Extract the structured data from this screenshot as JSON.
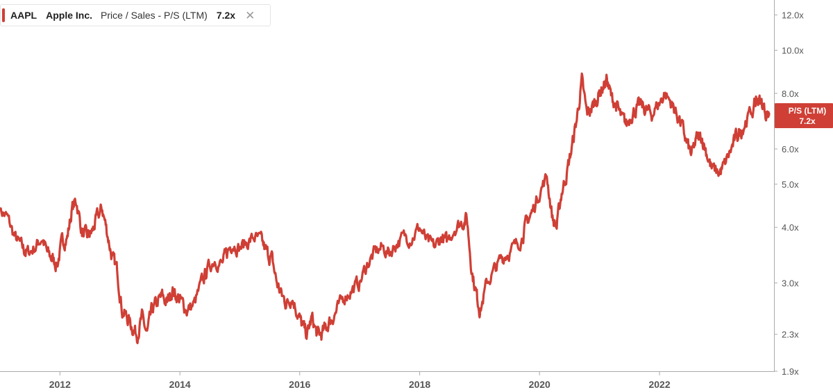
{
  "legend": {
    "ticker": "AAPL",
    "company": "Apple Inc.",
    "metric": "Price / Sales - P/S (LTM)",
    "value": "7.2x",
    "close_symbol": "✕"
  },
  "last_value_tag": {
    "label": "P/S (LTM)",
    "value": "7.2x"
  },
  "colors": {
    "series": "#cf3f35",
    "axis": "#aaaaaa",
    "tag_bg": "#cf3f35"
  },
  "chart_data": {
    "type": "line",
    "scale": "log",
    "ylim": [
      1.9,
      12.6
    ],
    "xlim": [
      "2011-01-01",
      "2023-10-31"
    ],
    "y_ticks": [
      {
        "value": 1.9,
        "label": "1.9x"
      },
      {
        "value": 2.3,
        "label": "2.3x"
      },
      {
        "value": 3.0,
        "label": "3.0x"
      },
      {
        "value": 4.0,
        "label": "4.0x"
      },
      {
        "value": 5.0,
        "label": "5.0x"
      },
      {
        "value": 6.0,
        "label": "6.0x"
      },
      {
        "value": 7.0,
        "label": "7.0x"
      },
      {
        "value": 8.0,
        "label": "8.0x"
      },
      {
        "value": 10.0,
        "label": "10.0x"
      },
      {
        "value": 12.0,
        "label": "12.0x"
      }
    ],
    "x_ticks": [
      {
        "date": "2012-01-01",
        "label": "2012"
      },
      {
        "date": "2014-01-01",
        "label": "2014"
      },
      {
        "date": "2016-01-01",
        "label": "2016"
      },
      {
        "date": "2018-01-01",
        "label": "2018"
      },
      {
        "date": "2020-01-01",
        "label": "2020"
      },
      {
        "date": "2022-01-01",
        "label": "2022"
      }
    ],
    "grid": false,
    "series": [
      {
        "x": [
          "2011-01-01",
          "2011-02-15",
          "2011-04-01",
          "2011-05-15",
          "2011-06-15",
          "2011-08-01",
          "2011-09-15",
          "2011-10-15",
          "2011-11-15",
          "2011-12-15",
          "2012-01-15",
          "2012-02-15",
          "2012-03-15",
          "2012-04-10",
          "2012-05-15",
          "2012-06-15",
          "2012-07-15",
          "2012-08-15",
          "2012-09-15",
          "2012-10-15",
          "2012-11-15",
          "2012-12-15",
          "2013-01-15",
          "2013-02-15",
          "2013-03-15",
          "2013-04-15",
          "2013-05-15",
          "2013-06-15",
          "2013-07-15",
          "2013-08-15",
          "2013-09-15",
          "2013-10-15",
          "2013-11-15",
          "2013-12-15",
          "2014-01-15",
          "2014-02-15",
          "2014-04-01",
          "2014-05-15",
          "2014-06-15",
          "2014-08-01",
          "2014-09-15",
          "2014-10-15",
          "2014-11-15",
          "2015-01-01",
          "2015-02-15",
          "2015-04-01",
          "2015-05-15",
          "2015-06-15",
          "2015-07-15",
          "2015-08-15",
          "2015-09-15",
          "2015-10-15",
          "2015-11-15",
          "2015-12-15",
          "2016-01-15",
          "2016-02-15",
          "2016-03-15",
          "2016-04-15",
          "2016-05-15",
          "2016-06-15",
          "2016-07-15",
          "2016-08-15",
          "2016-10-01",
          "2016-11-15",
          "2016-12-31",
          "2017-02-15",
          "2017-04-01",
          "2017-05-15",
          "2017-07-01",
          "2017-08-15",
          "2017-10-01",
          "2017-11-15",
          "2018-01-01",
          "2018-02-15",
          "2018-04-01",
          "2018-05-15",
          "2018-06-15",
          "2018-08-01",
          "2018-09-15",
          "2018-10-15",
          "2018-11-15",
          "2018-12-15",
          "2019-01-05",
          "2019-02-15",
          "2019-04-01",
          "2019-05-15",
          "2019-06-15",
          "2019-08-01",
          "2019-09-15",
          "2019-10-15",
          "2019-11-15",
          "2019-12-31",
          "2020-02-15",
          "2020-03-20",
          "2020-04-15",
          "2020-05-15",
          "2020-06-15",
          "2020-07-15",
          "2020-08-15",
          "2020-09-15",
          "2020-10-15",
          "2020-11-15",
          "2020-12-15",
          "2021-01-15",
          "2021-02-15",
          "2021-03-15",
          "2021-04-15",
          "2021-05-15",
          "2021-06-15",
          "2021-07-15",
          "2021-08-15",
          "2021-09-15",
          "2021-10-15",
          "2021-11-15",
          "2021-12-31",
          "2022-02-01",
          "2022-03-15",
          "2022-04-15",
          "2022-05-15",
          "2022-06-15",
          "2022-07-15",
          "2022-08-15",
          "2022-09-15",
          "2022-10-15",
          "2022-11-15",
          "2022-12-31",
          "2023-02-01",
          "2023-03-15",
          "2023-04-15",
          "2023-05-15",
          "2023-06-15",
          "2023-07-31",
          "2023-08-15",
          "2023-09-15",
          "2023-10-15",
          "2023-10-31"
        ],
        "values": [
          4.4,
          4.2,
          3.8,
          3.6,
          3.5,
          3.6,
          3.8,
          3.5,
          3.4,
          3.3,
          3.7,
          3.8,
          4.4,
          4.6,
          3.9,
          3.8,
          3.9,
          4.2,
          4.4,
          3.9,
          3.4,
          3.2,
          2.6,
          2.5,
          2.4,
          2.3,
          2.5,
          2.3,
          2.6,
          2.7,
          2.8,
          2.7,
          2.9,
          2.8,
          2.7,
          2.6,
          2.7,
          3.0,
          3.2,
          3.4,
          3.3,
          3.5,
          3.7,
          3.6,
          3.7,
          3.8,
          3.7,
          3.5,
          3.4,
          3.0,
          2.8,
          2.7,
          2.8,
          2.6,
          2.4,
          2.3,
          2.5,
          2.3,
          2.3,
          2.4,
          2.5,
          2.6,
          2.8,
          2.9,
          3.0,
          3.3,
          3.5,
          3.6,
          3.5,
          3.7,
          3.8,
          3.8,
          4.0,
          3.7,
          3.6,
          3.8,
          3.7,
          4.0,
          4.1,
          4.2,
          3.2,
          2.8,
          2.6,
          3.0,
          3.2,
          3.4,
          3.5,
          3.6,
          3.8,
          4.1,
          4.3,
          4.8,
          5.2,
          4.2,
          4.0,
          4.8,
          5.3,
          6.0,
          7.0,
          8.5,
          7.2,
          7.4,
          7.8,
          8.2,
          8.6,
          7.8,
          7.5,
          7.0,
          6.8,
          7.2,
          7.4,
          7.5,
          7.3,
          7.2,
          7.6,
          8.0,
          7.6,
          7.2,
          6.8,
          6.2,
          5.8,
          6.3,
          6.4,
          5.9,
          5.4,
          5.3,
          5.5,
          6.0,
          6.4,
          6.6,
          7.0,
          7.4,
          7.8,
          7.6,
          7.2,
          7.2
        ]
      }
    ]
  }
}
